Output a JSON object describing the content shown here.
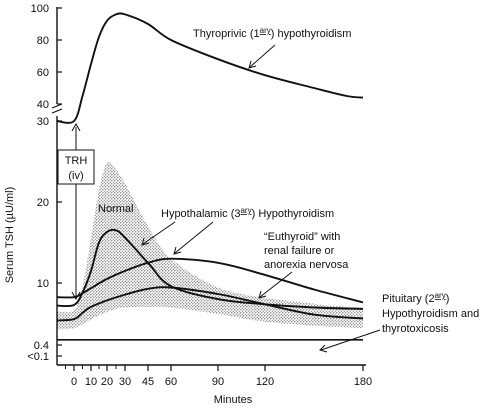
{
  "chart_data": {
    "type": "line",
    "title": "",
    "xlabel": "Minutes",
    "ylabel": "Serum TSH (µU/ml)",
    "x_ticks": [
      0,
      10,
      20,
      30,
      45,
      60,
      90,
      120,
      180
    ],
    "x_minor_ticks": [
      -5,
      5,
      15,
      25
    ],
    "xlim": [
      -10,
      180
    ],
    "y_ticks": [
      {
        "value": "<0.1",
        "label": "<0.1"
      },
      {
        "value": "0.4",
        "label": "0.4"
      },
      {
        "value": "10",
        "label": "10"
      },
      {
        "value": "20",
        "label": "20"
      },
      {
        "value": "30",
        "label": "30"
      },
      {
        "value": "40",
        "label": "40"
      },
      {
        "value": "60",
        "label": "60"
      },
      {
        "value": "80",
        "label": "80"
      },
      {
        "value": "100",
        "label": "100"
      }
    ],
    "y_axis_break": "between 30 and 40",
    "stimulus_annotation": {
      "lines": [
        "TRH",
        "(iv)"
      ],
      "time": 0
    },
    "normal_range_label": "Normal",
    "series": [
      {
        "name": "Thyroprivic (1ary) hypothyroidism",
        "label_main": "Thyroprivic (1",
        "label_sup": "ary",
        "label_rest": ") hypothyroidism",
        "x": [
          -10,
          0,
          5,
          10,
          15,
          20,
          25,
          30,
          45,
          60,
          90,
          120,
          150,
          170,
          180
        ],
        "y": [
          30,
          31,
          45,
          65,
          82,
          92,
          96,
          96,
          90,
          80,
          68,
          58,
          50,
          45,
          44
        ]
      },
      {
        "name": "Hypothalamic (3ary) Hypothyroidism",
        "label_main": "Hypothalamic (3",
        "label_sup": "ary",
        "label_rest": ") Hypothyroidism",
        "x": [
          -10,
          0,
          5,
          10,
          15,
          20,
          25,
          30,
          45,
          60,
          90,
          120,
          150,
          180
        ],
        "y": [
          6.5,
          6.6,
          8.5,
          11.5,
          15,
          16.3,
          16.5,
          15.6,
          12.5,
          9.5,
          7.5,
          6.7,
          6.2,
          6.0
        ]
      },
      {
        "name": "\"Euthyroid\" with renal failure or anorexia nervosa",
        "label_lines": [
          "“Euthyroid” with",
          "renal failure or",
          "anorexia nervosa"
        ],
        "x": [
          -10,
          0,
          5,
          10,
          20,
          30,
          45,
          60,
          90,
          120,
          150,
          180
        ],
        "y": [
          7.8,
          7.8,
          8.4,
          9.2,
          10.5,
          11.5,
          12.5,
          13.0,
          12.5,
          11.0,
          9.0,
          7.0
        ]
      },
      {
        "name": "Normal",
        "x": [
          -10,
          0,
          5,
          10,
          20,
          30,
          45,
          60,
          90,
          120,
          150,
          180
        ],
        "y": [
          4.2,
          4.4,
          5.4,
          6.3,
          7.3,
          8.2,
          9.1,
          9.3,
          8.3,
          6.7,
          5.1,
          4.5
        ]
      },
      {
        "name": "Pituitary (2ary) Hypothyroidism and thyrotoxicosis",
        "label_line1_main": "Pituitary (2",
        "label_sup": "ary",
        "label_line1_rest": ")",
        "label_lines": [
          "Hypothyroidism and",
          "thyrotoxicosis"
        ],
        "x": [
          -10,
          180
        ],
        "y": [
          1.2,
          1.2
        ]
      }
    ],
    "normal_band": {
      "x": [
        -10,
        0,
        5,
        10,
        15,
        20,
        25,
        30,
        45,
        60,
        90,
        120,
        150,
        180
      ],
      "upper": [
        5.6,
        5.8,
        9.5,
        15.5,
        21.5,
        24.8,
        24.0,
        22.3,
        17.0,
        13.0,
        9.3,
        7.7,
        6.8,
        6.0
      ],
      "lower": [
        2.8,
        3.0,
        3.6,
        4.4,
        5.0,
        5.5,
        6.0,
        6.2,
        6.3,
        6.2,
        5.2,
        4.0,
        3.4,
        3.0
      ]
    },
    "grid": false,
    "legend": "none (series labeled inline)"
  }
}
